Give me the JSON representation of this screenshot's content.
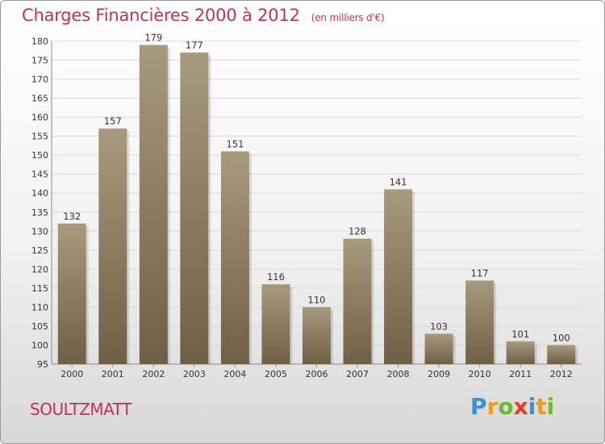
{
  "title": "Charges Financières 2000 à 2012",
  "subtitle": "(en milliers d'€)",
  "place": "SOULTZMATT",
  "logo": {
    "letters": [
      "P",
      "r",
      "o",
      "x",
      "i",
      "t",
      "i"
    ],
    "colors": [
      "#3a8fd6",
      "#f39a1e",
      "#6fb82f",
      "#e23b2e",
      "#3a8fd6",
      "#f39a1e",
      "#6fb82f"
    ]
  },
  "colors": {
    "title": "#c0325a",
    "bar_top": "#a89a7d",
    "bar_bottom": "#6f5f46",
    "grid": "#d9d9d9"
  },
  "chart_data": {
    "type": "bar",
    "title": "Charges Financières 2000 à 2012",
    "subtitle": "(en milliers d'€)",
    "categories": [
      "2000",
      "2001",
      "2002",
      "2003",
      "2004",
      "2005",
      "2006",
      "2007",
      "2008",
      "2009",
      "2010",
      "2011",
      "2012"
    ],
    "values": [
      132,
      157,
      179,
      177,
      151,
      116,
      110,
      128,
      141,
      103,
      117,
      101,
      100
    ],
    "ylim": [
      95,
      180
    ],
    "yticks": [
      95,
      100,
      105,
      110,
      115,
      120,
      125,
      130,
      135,
      140,
      145,
      150,
      155,
      160,
      165,
      170,
      175,
      180
    ],
    "grid": true,
    "xlabel": "",
    "ylabel": ""
  }
}
